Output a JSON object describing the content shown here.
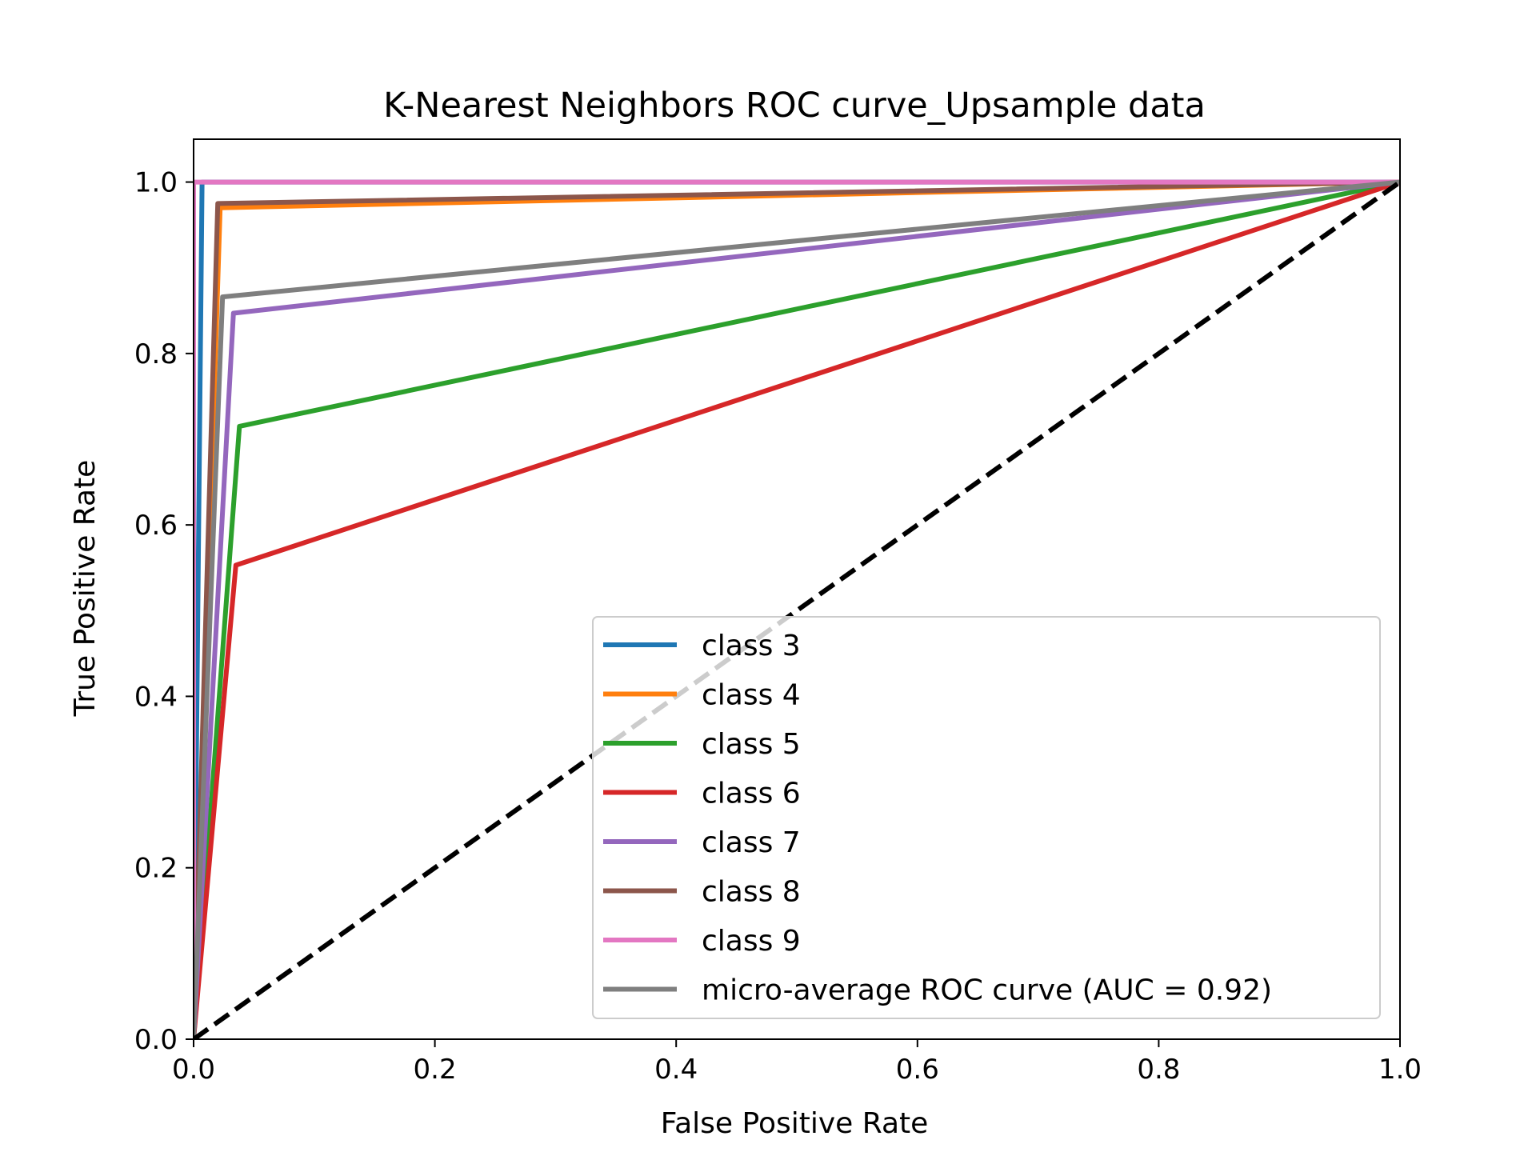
{
  "chart_data": {
    "type": "line",
    "title": "K-Nearest Neighbors ROC curve_Upsample data",
    "xlabel": "False Positive Rate",
    "ylabel": "True Positive Rate",
    "xlim": [
      0.0,
      1.0
    ],
    "ylim": [
      0.0,
      1.05
    ],
    "xticks": [
      "0.0",
      "0.2",
      "0.4",
      "0.6",
      "0.8",
      "1.0"
    ],
    "yticks": [
      "0.0",
      "0.2",
      "0.4",
      "0.6",
      "0.8",
      "1.0"
    ],
    "grid": false,
    "legend_position": "lower-right",
    "series": [
      {
        "name": "class 3",
        "color": "#1f77b4",
        "x": [
          0.0,
          0.007,
          1.0
        ],
        "y": [
          0.0,
          1.0,
          1.0
        ]
      },
      {
        "name": "class 4",
        "color": "#ff7f0e",
        "x": [
          0.0,
          0.022,
          1.0
        ],
        "y": [
          0.0,
          0.97,
          1.0
        ]
      },
      {
        "name": "class 5",
        "color": "#2ca02c",
        "x": [
          0.0,
          0.038,
          1.0
        ],
        "y": [
          0.0,
          0.715,
          1.0
        ]
      },
      {
        "name": "class 6",
        "color": "#d62728",
        "x": [
          0.0,
          0.035,
          1.0
        ],
        "y": [
          0.0,
          0.553,
          1.0
        ]
      },
      {
        "name": "class 7",
        "color": "#9467bd",
        "x": [
          0.0,
          0.033,
          1.0
        ],
        "y": [
          0.0,
          0.847,
          1.0
        ]
      },
      {
        "name": "class 8",
        "color": "#8c564b",
        "x": [
          0.0,
          0.02,
          1.0
        ],
        "y": [
          0.0,
          0.975,
          1.0
        ]
      },
      {
        "name": "class 9",
        "color": "#e377c2",
        "x": [
          0.0,
          0.0,
          1.0
        ],
        "y": [
          0.0,
          1.0,
          1.0
        ]
      },
      {
        "name": "micro-average ROC curve (AUC = 0.92)",
        "color": "#7f7f7f",
        "x": [
          0.0,
          0.024,
          1.0
        ],
        "y": [
          0.0,
          0.866,
          1.0
        ]
      }
    ],
    "reference_line": {
      "color": "#000000",
      "style": "dashed",
      "x": [
        0.0,
        1.0
      ],
      "y": [
        0.0,
        1.0
      ]
    }
  }
}
